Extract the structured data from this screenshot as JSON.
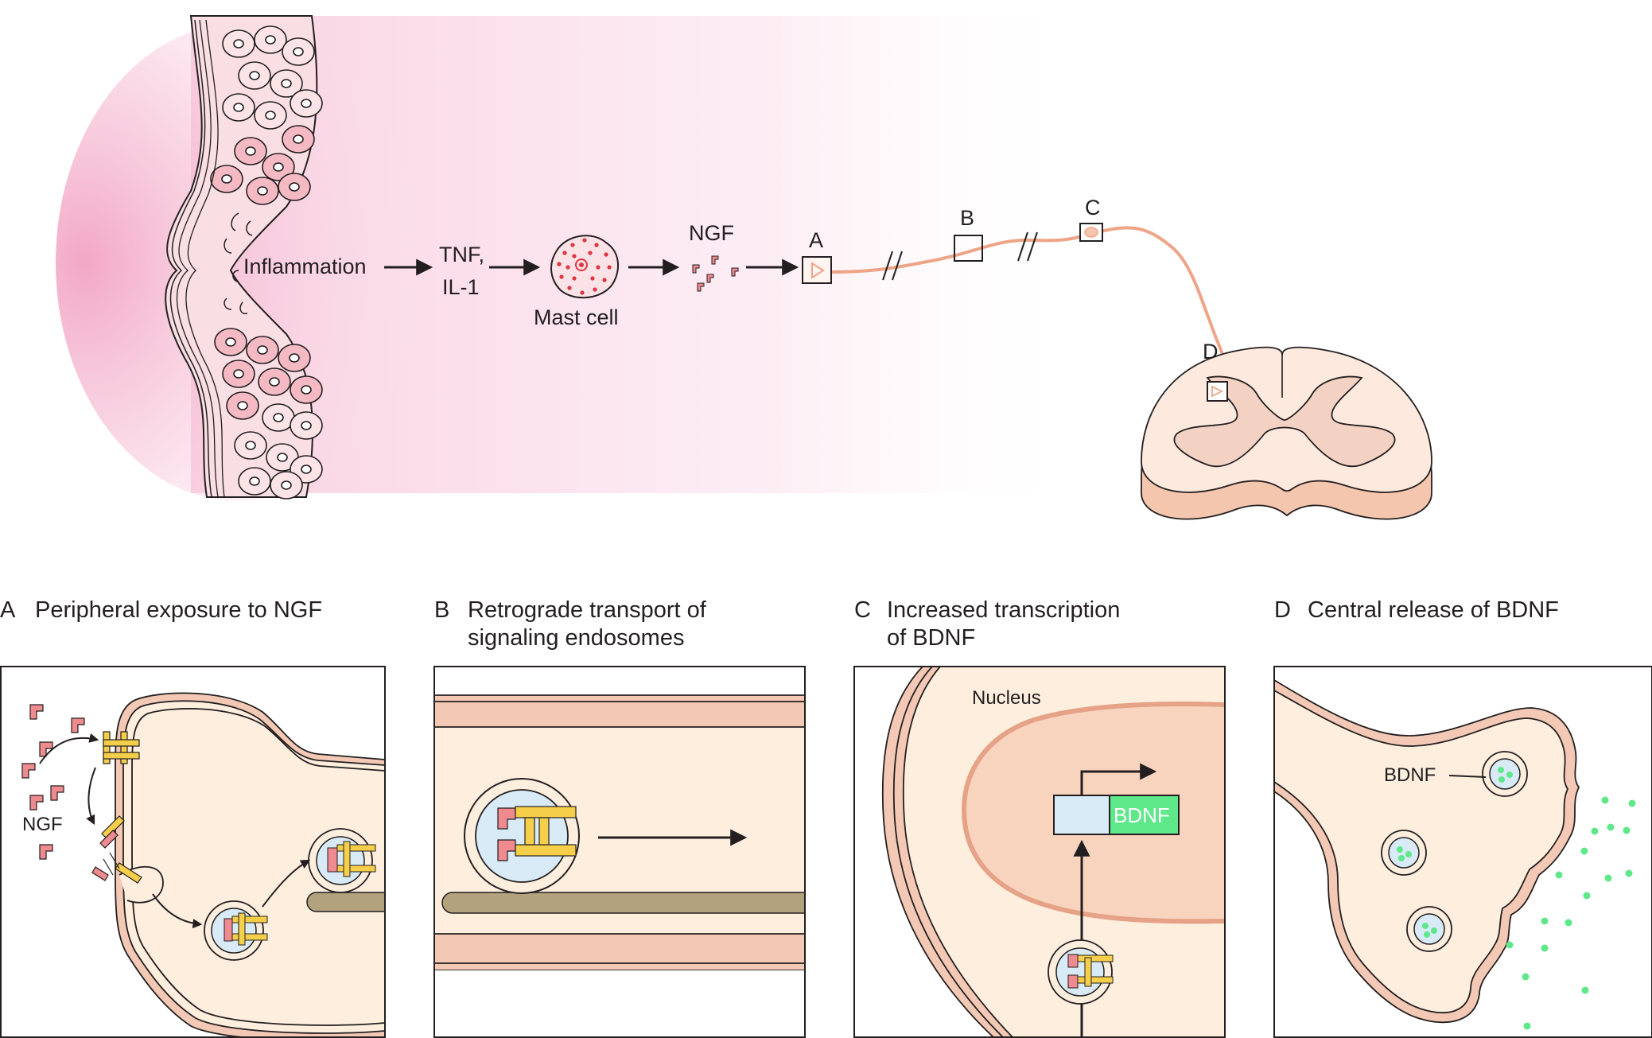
{
  "overview": {
    "inflammation": "Inflammation",
    "tnf": "TNF,",
    "il1": "IL-1",
    "mast_cell": "Mast cell",
    "ngf": "NGF",
    "box_a": "A",
    "box_b": "B",
    "box_c": "C",
    "box_d": "D"
  },
  "panels": [
    {
      "letter": "A",
      "title_line1": "Peripheral exposure to NGF",
      "title_line2": "",
      "inner_label": "NGF"
    },
    {
      "letter": "B",
      "title_line1": "Retrograde transport of",
      "title_line2": "signaling endosomes"
    },
    {
      "letter": "C",
      "title_line1": "Increased transcription",
      "title_line2": "of BDNF",
      "nucleus_label": "Nucleus",
      "gene_label": "BDNF"
    },
    {
      "letter": "D",
      "title_line1": "Central release of BDNF",
      "title_line2": "",
      "inner_label": "BDNF"
    }
  ],
  "colors": {
    "inflammation_glow": "#f3a9c6",
    "axon": "#eea487",
    "cytoplasm": "#fdeede",
    "membrane": "#f3c9b5",
    "ngf": "#ef8a8f",
    "receptor": "#f5cf4a",
    "endosome": "#d7eaf6",
    "microtubule": "#b2a27e",
    "bdnf": "#5ee88a",
    "nucleus_fill": "#f8d3bd",
    "nucleus_outline": "#e6a286"
  }
}
